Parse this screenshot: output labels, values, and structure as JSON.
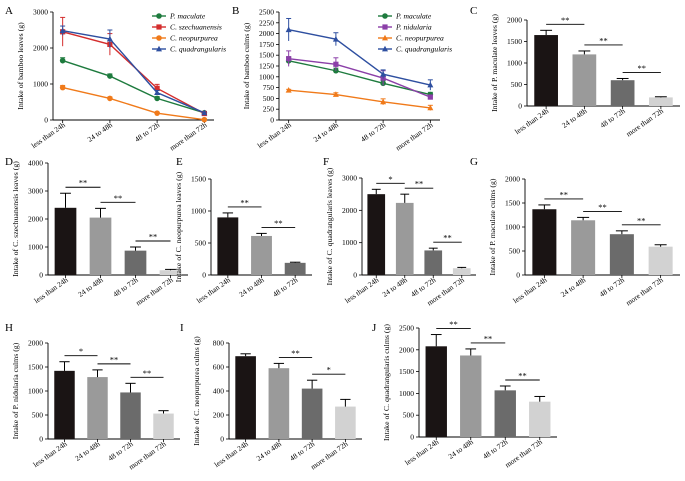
{
  "figure": {
    "description_labels": [
      "A",
      "B",
      "C",
      "D",
      "E",
      "F",
      "G",
      "H",
      "I",
      "J"
    ]
  },
  "chart_data": [
    {
      "id": "A",
      "type": "line",
      "panel_label": "A",
      "categories": [
        "less than 24h",
        "24 to 48h",
        "48 to 72h",
        "more than 72h"
      ],
      "ylabel": "Intake of bamboo leaves (g)",
      "ylim": [
        0,
        3000
      ],
      "yticks": [
        0,
        1000,
        2000,
        3000
      ],
      "series": [
        {
          "name": "P. maculate",
          "color": "#1e7b3e",
          "marker": "circle",
          "values": [
            1650,
            1220,
            600,
            200
          ],
          "errors": [
            80,
            60,
            50,
            20
          ]
        },
        {
          "name": "C. szechuanensis",
          "color": "#d42d2d",
          "marker": "square",
          "values": [
            2450,
            2100,
            880,
            180
          ],
          "errors": [
            400,
            300,
            110,
            20
          ]
        },
        {
          "name": "C. neopurpurea",
          "color": "#f07a1a",
          "marker": "circle",
          "values": [
            900,
            600,
            190,
            10
          ],
          "errors": [
            60,
            40,
            20,
            5
          ]
        },
        {
          "name": "C. quadrangularis",
          "color": "#2e4fa0",
          "marker": "triangle",
          "values": [
            2480,
            2250,
            760,
            200
          ],
          "errors": [
            130,
            250,
            60,
            20
          ]
        }
      ]
    },
    {
      "id": "B",
      "type": "line",
      "panel_label": "B",
      "categories": [
        "less than 24h",
        "24 to 48h",
        "48 to 72h",
        "more than 72h"
      ],
      "ylabel": "Intake of bamboo culms (g)",
      "ylim": [
        0,
        2500
      ],
      "yticks": [
        0,
        250,
        500,
        750,
        1000,
        1250,
        1500,
        1750,
        2000,
        2250,
        2500
      ],
      "series": [
        {
          "name": "P. maculate",
          "color": "#1e7b3e",
          "marker": "circle",
          "values": [
            1370,
            1140,
            850,
            590
          ],
          "errors": [
            80,
            60,
            60,
            50
          ]
        },
        {
          "name": "P. nidularia",
          "color": "#8b3fa8",
          "marker": "square",
          "values": [
            1420,
            1290,
            970,
            530
          ],
          "errors": [
            180,
            150,
            170,
            50
          ]
        },
        {
          "name": "C. neopurpurea",
          "color": "#f07a1a",
          "marker": "triangle",
          "values": [
            690,
            590,
            420,
            280
          ],
          "errors": [
            20,
            40,
            70,
            60
          ]
        },
        {
          "name": "C. quadrangularis",
          "color": "#2e4fa0",
          "marker": "triangle",
          "values": [
            2090,
            1870,
            1060,
            810
          ],
          "errors": [
            260,
            150,
            100,
            120
          ]
        }
      ]
    },
    {
      "id": "C",
      "type": "bar",
      "panel_label": "C",
      "categories": [
        "less than 24h",
        "24 to 48h",
        "48 to 72h",
        "more than 72h"
      ],
      "ylabel": "Intake of P. maculate leaves (g)",
      "ylim": [
        0,
        2000
      ],
      "yticks": [
        0,
        500,
        1000,
        1500,
        2000
      ],
      "values": [
        1650,
        1200,
        600,
        200
      ],
      "errors": [
        110,
        80,
        40,
        15
      ],
      "significance": [
        {
          "from": 0,
          "to": 1,
          "label": "**"
        },
        {
          "from": 1,
          "to": 2,
          "label": "**"
        },
        {
          "from": 2,
          "to": 3,
          "label": "**"
        }
      ]
    },
    {
      "id": "D",
      "type": "bar",
      "panel_label": "D",
      "categories": [
        "less than 24h",
        "24 to 48h",
        "48 to 72h",
        "more than 72h"
      ],
      "ylabel": "Intake of C. szechuanensis leaves (g)",
      "ylim": [
        0,
        4000
      ],
      "yticks": [
        0,
        1000,
        2000,
        3000,
        4000
      ],
      "values": [
        2400,
        2050,
        870,
        170
      ],
      "errors": [
        520,
        330,
        130,
        30
      ],
      "significance": [
        {
          "from": 0,
          "to": 1,
          "label": "**"
        },
        {
          "from": 1,
          "to": 2,
          "label": "**"
        },
        {
          "from": 2,
          "to": 3,
          "label": "**"
        }
      ]
    },
    {
      "id": "E",
      "type": "bar",
      "panel_label": "E",
      "categories": [
        "less than 24h",
        "24 to 48h",
        "48 to 72h"
      ],
      "ylabel": "Intake of C. neopurpurea leaves (g)",
      "ylim": [
        0,
        1500
      ],
      "yticks": [
        0,
        500,
        1000,
        1500
      ],
      "values": [
        900,
        610,
        190
      ],
      "errors": [
        70,
        40,
        10
      ],
      "significance": [
        {
          "from": 0,
          "to": 1,
          "label": "**"
        },
        {
          "from": 1,
          "to": 2,
          "label": "**"
        }
      ]
    },
    {
      "id": "F",
      "type": "bar",
      "panel_label": "F",
      "categories": [
        "less than 24h",
        "24 to 48h",
        "48 to 72h",
        "more than 72h"
      ],
      "ylabel": "Intake of C. quadrangularis leaves (g)",
      "ylim": [
        0,
        3000
      ],
      "yticks": [
        0,
        1000,
        2000,
        3000
      ],
      "values": [
        2500,
        2230,
        760,
        210
      ],
      "errors": [
        150,
        270,
        70,
        25
      ],
      "significance": [
        {
          "from": 0,
          "to": 1,
          "label": "*"
        },
        {
          "from": 1,
          "to": 2,
          "label": "**"
        },
        {
          "from": 2,
          "to": 3,
          "label": "**"
        }
      ]
    },
    {
      "id": "G",
      "type": "bar",
      "panel_label": "G",
      "categories": [
        "less than 24h",
        "24 to 48h",
        "48 to 72h",
        "more than 72h"
      ],
      "ylabel": "Intake of P. maculate culms (g)",
      "ylim": [
        0,
        2000
      ],
      "yticks": [
        0,
        500,
        1000,
        1500,
        2000
      ],
      "values": [
        1370,
        1140,
        850,
        590
      ],
      "errors": [
        90,
        60,
        70,
        40
      ],
      "significance": [
        {
          "from": 0,
          "to": 1,
          "label": "**"
        },
        {
          "from": 1,
          "to": 2,
          "label": "**"
        },
        {
          "from": 2,
          "to": 3,
          "label": "**"
        }
      ]
    },
    {
      "id": "H",
      "type": "bar",
      "panel_label": "H",
      "categories": [
        "less than 24h",
        "24 to 48h",
        "48 to 72h",
        "more than 72h"
      ],
      "ylabel": "Intake of P. nidularia culms (g)",
      "ylim": [
        0,
        2000
      ],
      "yticks": [
        0,
        500,
        1000,
        1500,
        2000
      ],
      "values": [
        1420,
        1290,
        970,
        530
      ],
      "errors": [
        190,
        150,
        190,
        60
      ],
      "significance": [
        {
          "from": 0,
          "to": 1,
          "label": "*"
        },
        {
          "from": 1,
          "to": 2,
          "label": "**"
        },
        {
          "from": 2,
          "to": 3,
          "label": "**"
        }
      ]
    },
    {
      "id": "I",
      "type": "bar",
      "panel_label": "I",
      "categories": [
        "less than 24h",
        "24 to 48h",
        "48 to 72h",
        "more than 72h"
      ],
      "ylabel": "Intake of C. neopurpurea culms (g)",
      "ylim": [
        0,
        800
      ],
      "yticks": [
        0,
        200,
        400,
        600,
        800
      ],
      "values": [
        690,
        590,
        420,
        270
      ],
      "errors": [
        20,
        40,
        70,
        60
      ],
      "significance": [
        {
          "from": 1,
          "to": 2,
          "label": "**"
        },
        {
          "from": 2,
          "to": 3,
          "label": "*"
        }
      ]
    },
    {
      "id": "J",
      "type": "bar",
      "panel_label": "J",
      "categories": [
        "less than 24h",
        "24 to 48h",
        "48 to 72h",
        "more than 72h"
      ],
      "ylabel": "Intake of C. quadrangularis culms (g)",
      "ylim": [
        0,
        2500
      ],
      "yticks": [
        0,
        500,
        1000,
        1500,
        2000,
        2500
      ],
      "values": [
        2080,
        1870,
        1070,
        810
      ],
      "errors": [
        270,
        150,
        100,
        120
      ],
      "significance": [
        {
          "from": 0,
          "to": 1,
          "label": "**"
        },
        {
          "from": 1,
          "to": 2,
          "label": "**"
        },
        {
          "from": 2,
          "to": 3,
          "label": "**"
        }
      ]
    }
  ],
  "bar_colors": [
    "#1a1414",
    "#9a9a9a",
    "#6b6b6b",
    "#d2d2d2"
  ]
}
